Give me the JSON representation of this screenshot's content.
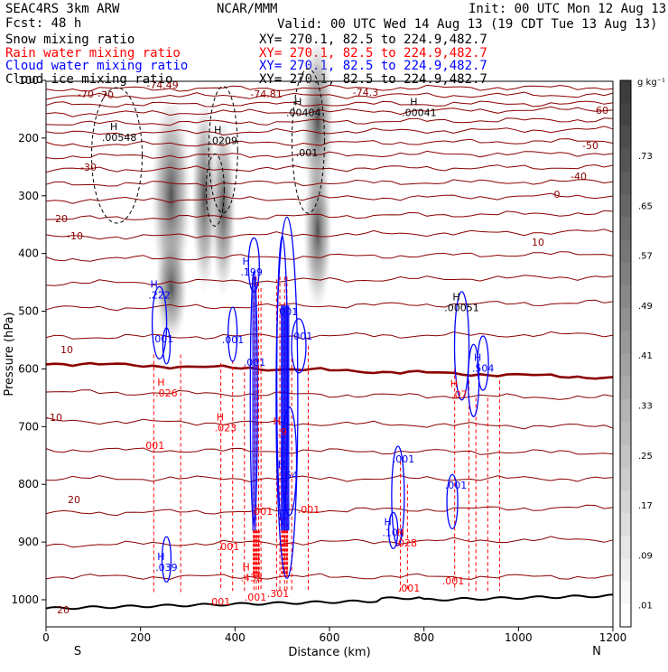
{
  "header": {
    "model": "SEAC4RS  3km ARW",
    "org": "NCAR/MMM",
    "init": "Init: 00 UTC Mon 12 Aug 13",
    "fcst": "Fcst:   48 h",
    "valid": "Valid: 00 UTC Wed 14 Aug 13 (19 CDT Tue 13 Aug 13)",
    "fields": [
      {
        "label": "Snow mixing ratio",
        "xy": "XY= 270.1, 82.5 to 224.9,482.7",
        "color": "#000000"
      },
      {
        "label": "Rain water mixing ratio",
        "xy": "XY= 270.1, 82.5 to 224.9,482.7",
        "color": "#ff0000"
      },
      {
        "label": "Cloud water mixing ratio",
        "xy": "XY= 270.1, 82.5 to 224.9,482.7",
        "color": "#0000ff"
      },
      {
        "label": "Cloud ice mixing ratio",
        "xy": "XY= 270.1, 82.5 to 224.9,482.7",
        "color": "#000000"
      }
    ]
  },
  "colors": {
    "temperature": "#8b0000",
    "zero_isotherm": "#8b0000",
    "rain": "#ff0000",
    "cloud_water": "#0000ff",
    "cloud_ice": "#000000",
    "terrain": "#000000"
  },
  "chart_data": {
    "type": "cross-section",
    "xlabel": "Distance (km)",
    "ylabel": "Pressure (hPa)",
    "xlim": [
      0,
      1200
    ],
    "ylim": [
      1050,
      100
    ],
    "x_ticks": [
      "0",
      "200",
      "400",
      "600",
      "800",
      "1000",
      "1200"
    ],
    "y_ticks": [
      "100",
      "200",
      "300",
      "400",
      "500",
      "600",
      "700",
      "800",
      "900",
      "1000"
    ],
    "x_endpoint_labels": {
      "left": "S",
      "right": "N"
    },
    "colorbar": {
      "unit": "g kg⁻¹",
      "labels": [
        ".73",
        ".65",
        ".57",
        ".49",
        ".41",
        ".33",
        ".25",
        ".17",
        ".09",
        ".01"
      ]
    },
    "temperature_contours": [
      {
        "T": "-70",
        "p": 128
      },
      {
        "T": "-60",
        "p": 142
      },
      {
        "T": "-50",
        "p": 175
      },
      {
        "T": "-40",
        "p": 212
      },
      {
        "T": "-30",
        "p": 265
      },
      {
        "T": "-20",
        "p": 340
      },
      {
        "T": "-10",
        "p": 452
      },
      {
        "T": "0",
        "p": 590
      },
      {
        "T": "10",
        "p": 690
      },
      {
        "T": "20",
        "p": 850
      }
    ],
    "temperature_labels": [
      "-70",
      "-74.49",
      "-74.81",
      "-74.3",
      "-70",
      "-60",
      "-50",
      "-40",
      "-30",
      "-20",
      "-10",
      "0",
      "10",
      "20"
    ],
    "maxima": [
      {
        "field": "snow",
        "x": 155,
        "p": 205,
        "label": ".00548"
      },
      {
        "field": "snow",
        "x": 375,
        "p": 210,
        "label": ".0209"
      },
      {
        "field": "snow",
        "x": 545,
        "p": 162,
        "label": ".00404"
      },
      {
        "field": "snow",
        "x": 790,
        "p": 162,
        "label": ".00041"
      },
      {
        "field": "snow",
        "x": 880,
        "p": 500,
        "label": ".00051"
      },
      {
        "field": "cloud_water",
        "x": 240,
        "p": 478,
        "label": ".222"
      },
      {
        "field": "cloud_water",
        "x": 435,
        "p": 438,
        "label": ".199"
      },
      {
        "field": "cloud_water",
        "x": 255,
        "p": 950,
        "label": ".039"
      },
      {
        "field": "cloud_water",
        "x": 510,
        "p": 790,
        "label": ".154"
      },
      {
        "field": "cloud_water",
        "x": 735,
        "p": 890,
        "label": ".101"
      },
      {
        "field": "cloud_water",
        "x": 925,
        "p": 605,
        "label": ".504"
      },
      {
        "field": "rain",
        "x": 255,
        "p": 648,
        "label": ".026"
      },
      {
        "field": "rain",
        "x": 380,
        "p": 708,
        "label": ".023"
      },
      {
        "field": "rain",
        "x": 435,
        "p": 968,
        "label": ".438"
      },
      {
        "field": "rain",
        "x": 500,
        "p": 715,
        "label": ".9"
      },
      {
        "field": "rain",
        "x": 762,
        "p": 908,
        "label": ".028"
      },
      {
        "field": "rain",
        "x": 875,
        "p": 650,
        "label": ".07"
      }
    ],
    "small_labels": [
      ".001",
      ".001",
      ".001",
      ".001",
      ".001",
      ".001",
      ".001",
      ".001",
      ".001",
      ".001",
      ".001",
      ".001",
      ".001",
      ".001",
      ".001",
      ".001",
      ".301"
    ]
  }
}
